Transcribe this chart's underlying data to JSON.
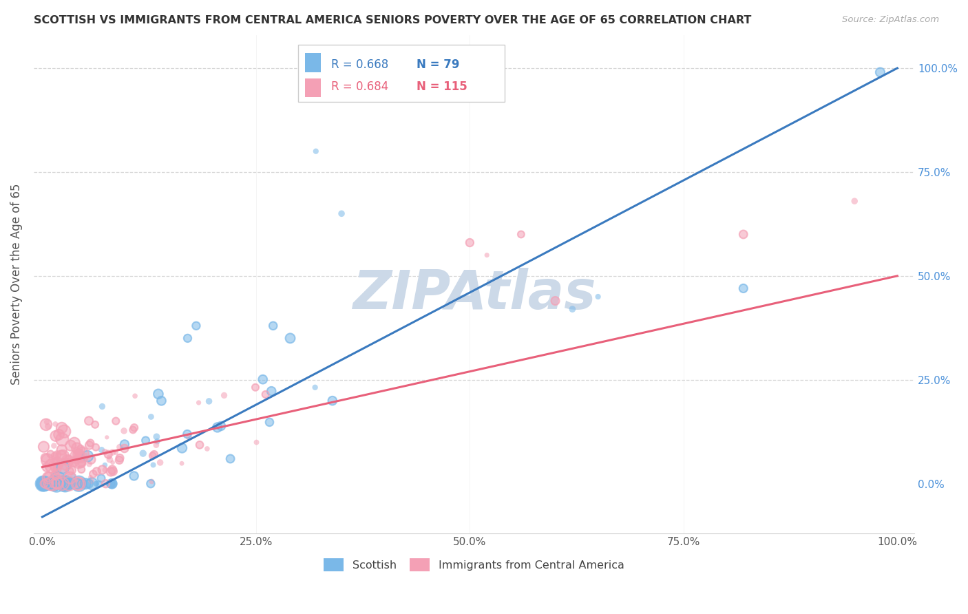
{
  "title": "SCOTTISH VS IMMIGRANTS FROM CENTRAL AMERICA SENIORS POVERTY OVER THE AGE OF 65 CORRELATION CHART",
  "source": "Source: ZipAtlas.com",
  "ylabel": "Seniors Poverty Over the Age of 65",
  "blue_R": 0.668,
  "blue_N": 79,
  "pink_R": 0.684,
  "pink_N": 115,
  "blue_color": "#7ab8e8",
  "pink_color": "#f4a0b5",
  "blue_line_color": "#3a7abf",
  "pink_line_color": "#e8607a",
  "blue_line_intercept": -0.08,
  "blue_line_slope": 1.08,
  "pink_line_intercept": 0.04,
  "pink_line_slope": 0.46,
  "ytick_color": "#4a90d9",
  "watermark_color": "#ccd9e8",
  "grid_color": "#cccccc",
  "title_color": "#333333",
  "source_color": "#aaaaaa",
  "label_color": "#555555"
}
